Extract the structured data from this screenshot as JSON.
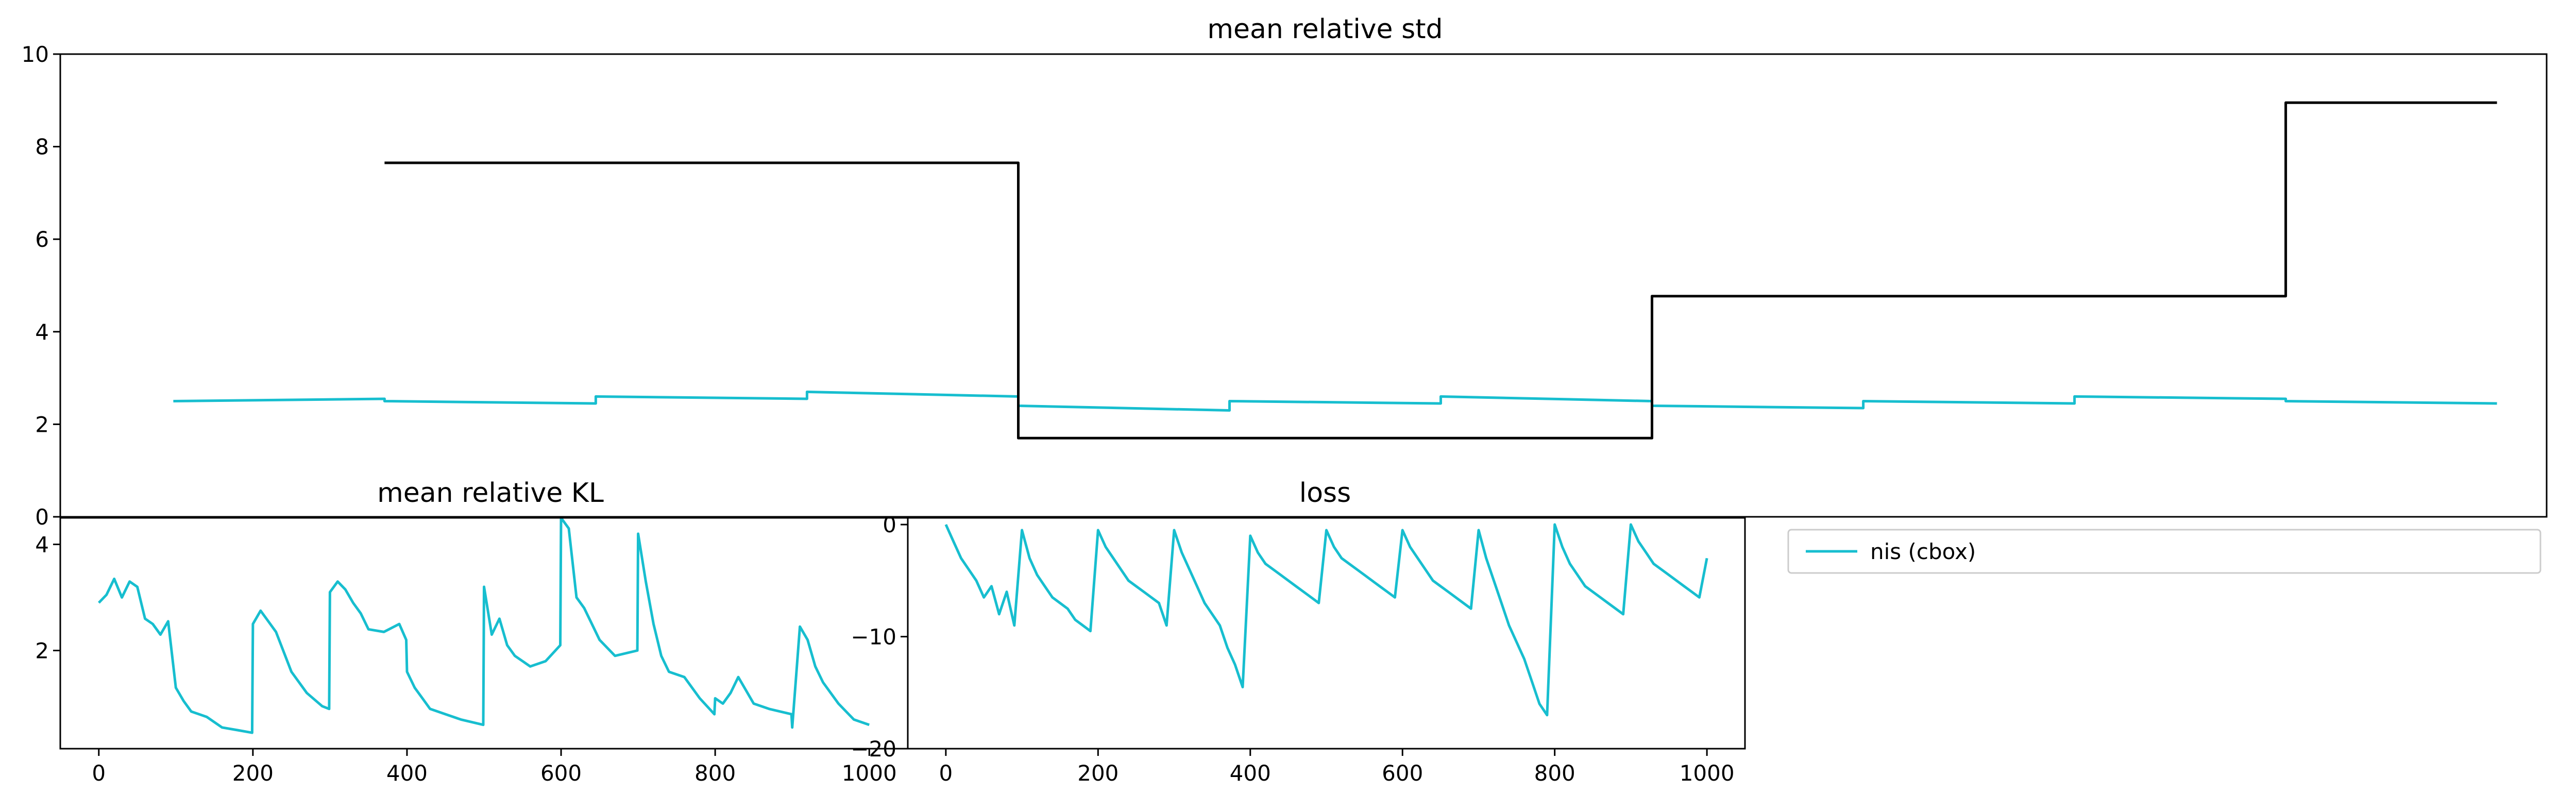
{
  "colors": {
    "series": "#17becf",
    "reference": "#000000",
    "axes": "#000000"
  },
  "chart_data": [
    {
      "type": "line",
      "title": "mean relative std",
      "xlim": [
        -53.5,
        1123.5
      ],
      "ylim": [
        0,
        10
      ],
      "yticks": [
        0,
        2,
        4,
        6,
        8,
        10
      ],
      "ytick_labels": [
        "0",
        "2",
        "4",
        "6",
        "8",
        "10"
      ],
      "xticks_shown": false,
      "series": [
        {
          "style": "step",
          "x": [
            100,
            400,
            400,
            700,
            700,
            1000,
            1000,
            1100
          ],
          "y": [
            7.65,
            7.65,
            1.7,
            1.7,
            4.77,
            4.77,
            8.95,
            8.95
          ]
        },
        {
          "style": "polyline",
          "x": [
            0,
            100,
            100,
            200,
            200,
            300,
            300,
            400,
            400,
            500,
            500,
            600,
            600,
            700,
            700,
            800,
            800,
            900,
            900,
            1000,
            1000,
            1100
          ],
          "y": [
            2.5,
            2.55,
            2.5,
            2.45,
            2.6,
            2.55,
            2.7,
            2.6,
            2.4,
            2.3,
            2.5,
            2.45,
            2.6,
            2.5,
            2.4,
            2.35,
            2.5,
            2.45,
            2.6,
            2.55,
            2.5,
            2.45
          ]
        }
      ]
    },
    {
      "type": "line",
      "title": "mean relative KL",
      "xlim": [
        -50,
        1050
      ],
      "ylim": [
        0.15,
        4.5
      ],
      "yticks": [
        2,
        4
      ],
      "ytick_labels": [
        "2",
        "4"
      ],
      "xticks": [
        0,
        200,
        400,
        600,
        800,
        1000
      ],
      "xtick_labels": [
        "0",
        "200",
        "400",
        "600",
        "800",
        "1000"
      ],
      "series": [
        {
          "name": "nis (cbox)",
          "x": [
            0,
            10,
            20,
            30,
            40,
            50,
            60,
            70,
            80,
            90,
            100,
            110,
            120,
            140,
            160,
            180,
            199,
            200,
            210,
            220,
            230,
            250,
            270,
            290,
            299,
            300,
            310,
            320,
            330,
            340,
            350,
            370,
            390,
            399,
            400,
            410,
            420,
            430,
            450,
            470,
            499,
            500,
            510,
            520,
            530,
            540,
            560,
            580,
            599,
            600,
            610,
            620,
            630,
            650,
            670,
            699,
            700,
            710,
            720,
            730,
            740,
            760,
            780,
            799,
            800,
            810,
            820,
            830,
            850,
            870,
            899,
            900,
            910,
            920,
            930,
            940,
            960,
            980,
            1000
          ],
          "y": [
            2.9,
            3.05,
            3.35,
            3.0,
            3.3,
            3.2,
            2.6,
            2.5,
            2.3,
            2.55,
            1.3,
            1.05,
            0.85,
            0.75,
            0.55,
            0.5,
            0.45,
            2.5,
            2.75,
            2.55,
            2.35,
            1.6,
            1.2,
            0.95,
            0.9,
            3.1,
            3.3,
            3.15,
            2.9,
            2.7,
            2.4,
            2.35,
            2.5,
            2.2,
            1.6,
            1.3,
            1.1,
            0.9,
            0.8,
            0.7,
            0.6,
            3.2,
            2.3,
            2.6,
            2.1,
            1.9,
            1.7,
            1.8,
            2.1,
            4.5,
            4.3,
            3.0,
            2.8,
            2.2,
            1.9,
            2.0,
            4.2,
            3.3,
            2.5,
            1.9,
            1.6,
            1.5,
            1.1,
            0.8,
            1.1,
            1.0,
            1.2,
            1.5,
            1.0,
            0.9,
            0.8,
            0.55,
            2.45,
            2.2,
            1.7,
            1.4,
            1.0,
            0.7,
            0.6
          ]
        }
      ]
    },
    {
      "type": "line",
      "title": "loss",
      "xlim": [
        -50,
        1050
      ],
      "ylim": [
        -20,
        0.6
      ],
      "yticks": [
        0,
        -10,
        -20
      ],
      "ytick_labels": [
        "0",
        "−10",
        "−20"
      ],
      "xticks": [
        0,
        200,
        400,
        600,
        800,
        1000
      ],
      "xtick_labels": [
        "0",
        "200",
        "400",
        "600",
        "800",
        "1000"
      ],
      "series": [
        {
          "name": "nis (cbox)",
          "x": [
            0,
            10,
            20,
            30,
            40,
            50,
            60,
            70,
            80,
            90,
            100,
            110,
            120,
            130,
            140,
            150,
            160,
            170,
            180,
            190,
            200,
            210,
            220,
            230,
            240,
            250,
            260,
            270,
            280,
            290,
            300,
            310,
            320,
            330,
            340,
            350,
            360,
            370,
            380,
            390,
            400,
            410,
            420,
            430,
            440,
            450,
            460,
            470,
            480,
            490,
            500,
            510,
            520,
            530,
            540,
            550,
            560,
            570,
            580,
            590,
            600,
            610,
            620,
            630,
            640,
            650,
            660,
            670,
            680,
            690,
            700,
            710,
            720,
            730,
            740,
            750,
            760,
            770,
            780,
            790,
            800,
            810,
            820,
            830,
            840,
            850,
            860,
            870,
            880,
            890,
            900,
            910,
            920,
            930,
            940,
            950,
            960,
            970,
            980,
            990,
            1000
          ],
          "y": [
            0,
            -1.5,
            -3,
            -4,
            -5,
            -6.5,
            -5.5,
            -8,
            -6,
            -9,
            -0.5,
            -3,
            -4.5,
            -5.5,
            -6.5,
            -7,
            -7.5,
            -8.5,
            -9,
            -9.5,
            -0.5,
            -2,
            -3,
            -4,
            -5,
            -5.5,
            -6,
            -6.5,
            -7,
            -9,
            -0.5,
            -2.5,
            -4,
            -5.5,
            -7,
            -8,
            -9,
            -11,
            -12.5,
            -14.5,
            -1,
            -2.5,
            -3.5,
            -4,
            -4.5,
            -5,
            -5.5,
            -6,
            -6.5,
            -7,
            -0.5,
            -2,
            -3,
            -3.5,
            -4,
            -4.5,
            -5,
            -5.5,
            -6,
            -6.5,
            -0.5,
            -2,
            -3,
            -4,
            -5,
            -5.5,
            -6,
            -6.5,
            -7,
            -7.5,
            -0.5,
            -3,
            -5,
            -7,
            -9,
            -10.5,
            -12,
            -14,
            -16,
            -17,
            0,
            -2,
            -3.5,
            -4.5,
            -5.5,
            -6,
            -6.5,
            -7,
            -7.5,
            -8,
            0,
            -1.5,
            -2.5,
            -3.5,
            -4,
            -4.5,
            -5,
            -5.5,
            -6,
            -6.5,
            -3
          ]
        }
      ]
    }
  ],
  "legend": {
    "entries": [
      {
        "label": "nis (cbox)"
      }
    ]
  }
}
